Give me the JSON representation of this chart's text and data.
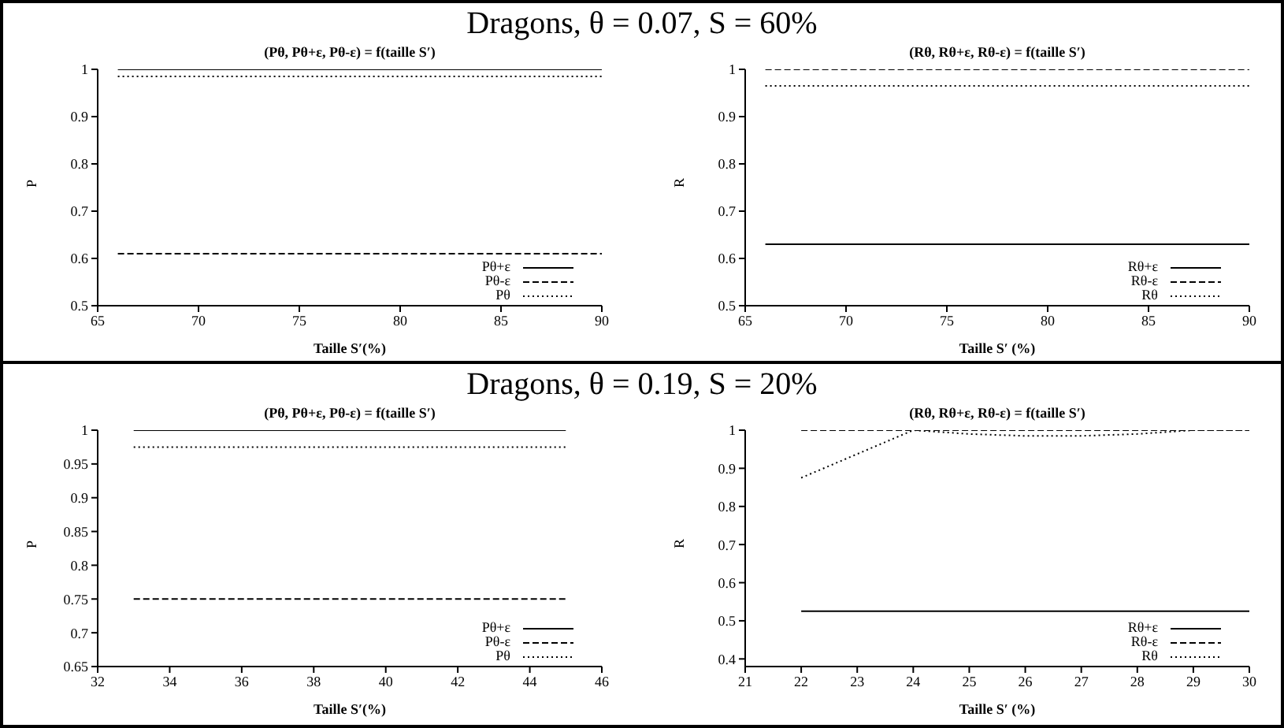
{
  "chart_data": [
    {
      "type": "line",
      "title": "Dragons, θ = 0.07, S = 60%",
      "subtitle": "(Pθ, Pθ+ε, Pθ-ε) = f(taille S′)",
      "xlabel": "Taille S′(%)",
      "ylabel": "P",
      "x": [
        66,
        90
      ],
      "xlim": [
        65,
        90
      ],
      "xticks": [
        65,
        70,
        75,
        80,
        85,
        90
      ],
      "ylim": [
        0.5,
        1
      ],
      "yticks": [
        0.5,
        0.6,
        0.7,
        0.8,
        0.9,
        1
      ],
      "legend": "bottom right",
      "series": [
        {
          "name": "Pθ+ε",
          "color": "#000000",
          "line_style": "solid",
          "values": [
            1,
            1
          ]
        },
        {
          "name": "Pθ-ε",
          "color": "#000000",
          "line_style": "dashed",
          "values": [
            0.61,
            0.61
          ]
        },
        {
          "name": "Pθ",
          "color": "#000000",
          "line_style": "dotted",
          "values": [
            0.985,
            0.985
          ]
        }
      ]
    },
    {
      "type": "line",
      "title": "(Rθ, Rθ+ε, Rθ-ε) = f(taille S′)",
      "xlabel": "Taille S′ (%)",
      "ylabel": "R",
      "x": [
        66,
        90
      ],
      "xlim": [
        65,
        90
      ],
      "xticks": [
        65,
        70,
        75,
        80,
        85,
        90
      ],
      "ylim": [
        0.5,
        1
      ],
      "yticks": [
        0.5,
        0.6,
        0.7,
        0.8,
        0.9,
        1
      ],
      "legend": "bottom right",
      "series": [
        {
          "name": "Rθ+ε",
          "color": "#000000",
          "line_style": "solid",
          "values": [
            0.63,
            0.63
          ]
        },
        {
          "name": "Rθ-ε",
          "color": "#000000",
          "line_style": "dashed",
          "values": [
            1,
            1
          ]
        },
        {
          "name": "Rθ",
          "color": "#000000",
          "line_style": "dotted",
          "values": [
            0.965,
            0.965
          ]
        }
      ]
    },
    {
      "type": "line",
      "title": "Dragons, θ = 0.19, S = 20%",
      "subtitle": "(Pθ, Pθ+ε, Pθ-ε) = f(taille S′)",
      "xlabel": "Taille S′(%)",
      "ylabel": "P",
      "x": [
        33,
        45
      ],
      "xlim": [
        32,
        46
      ],
      "xticks": [
        32,
        34,
        36,
        38,
        40,
        42,
        44,
        46
      ],
      "ylim": [
        0.65,
        1
      ],
      "yticks": [
        0.65,
        0.7,
        0.75,
        0.8,
        0.85,
        0.9,
        0.95,
        1
      ],
      "legend": "bottom right",
      "series": [
        {
          "name": "Pθ+ε",
          "color": "#000000",
          "line_style": "solid",
          "values": [
            1,
            1
          ]
        },
        {
          "name": "Pθ-ε",
          "color": "#000000",
          "line_style": "dashed",
          "values": [
            0.75,
            0.75
          ]
        },
        {
          "name": "Pθ",
          "color": "#000000",
          "line_style": "dotted",
          "values": [
            0.975,
            0.975
          ]
        }
      ]
    },
    {
      "type": "line",
      "title": "(Rθ, Rθ+ε, Rθ-ε) = f(taille S′)",
      "xlabel": "Taille S′ (%)",
      "ylabel": "R",
      "x": [
        22,
        24,
        25,
        26,
        27,
        28,
        29,
        30
      ],
      "xlim": [
        21,
        30
      ],
      "xticks": [
        21,
        22,
        23,
        24,
        25,
        26,
        27,
        28,
        29,
        30
      ],
      "ylim": [
        0.38,
        1
      ],
      "yticks": [
        0.4,
        0.5,
        0.6,
        0.7,
        0.8,
        0.9,
        1
      ],
      "legend": "bottom right",
      "series": [
        {
          "name": "Rθ+ε",
          "color": "#000000",
          "line_style": "solid",
          "values": [
            0.525,
            0.525,
            0.525,
            0.525,
            0.525,
            0.525,
            0.525,
            0.525
          ]
        },
        {
          "name": "Rθ-ε",
          "color": "#000000",
          "line_style": "dashed",
          "values": [
            1,
            1,
            1,
            1,
            1,
            1,
            1,
            1
          ]
        },
        {
          "name": "Rθ",
          "color": "#000000",
          "line_style": "dotted",
          "values": [
            0.875,
            1,
            0.99,
            0.985,
            0.985,
            0.99,
            1,
            1
          ]
        }
      ]
    }
  ]
}
